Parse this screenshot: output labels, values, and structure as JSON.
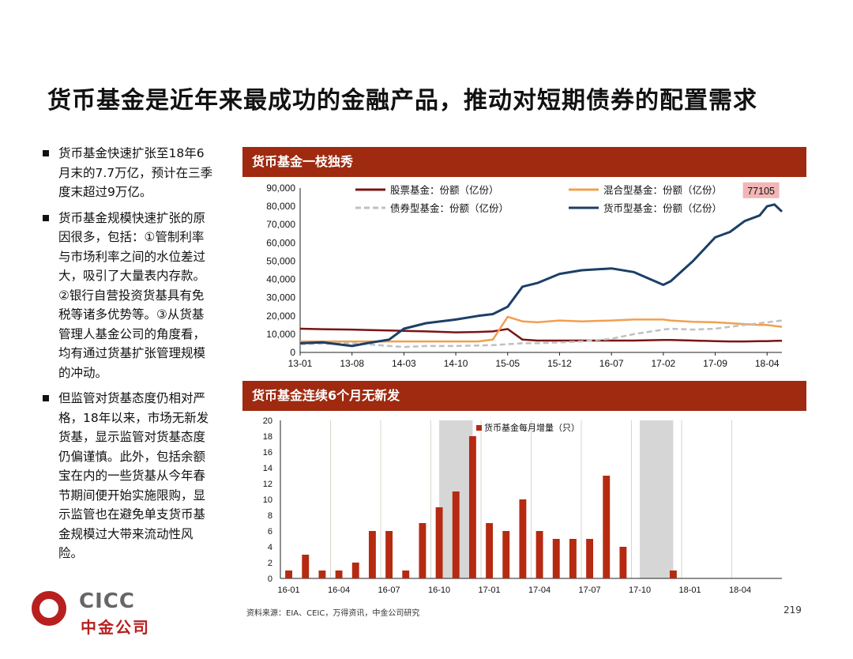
{
  "slide": {
    "title": "货币基金是近年来最成功的金融产品，推动对短期债券的配置需求",
    "source": "资料来源：EIA、CEIC，万得资讯，中金公司研究",
    "page_number": "219",
    "logo_text": "CICC",
    "logo_cn": "中金公司"
  },
  "bullets": [
    "货币基金快速扩张至18年6月末的7.7万亿，预计在三季度末超过9万亿。",
    "货币基金规模快速扩张的原因很多，包括：①管制利率与市场利率之间的水位差过大，吸引了大量表内存款。②银行自营投资货基具有免税等诸多优势等。③从货基管理人基金公司的角度看，均有通过货基扩张管理规模的冲动。",
    "但监管对货基态度仍相对严格，18年以来，市场无新发货基，显示监管对货基态度仍偏谨慎。此外，包括余额宝在内的一些货基从今年春节期间便开始实施限购，显示监管也在避免单支货币基金规模过大带来流动性风险。"
  ],
  "colors": {
    "header_bg": "#9f2a10",
    "stock": "#7b1414",
    "mixed": "#f0a050",
    "bond": "#c0c0c0",
    "money": "#1c3f66",
    "bar": "#b52a10",
    "shade": "#d6d6d6",
    "callout_bg": "#f2b6b6"
  },
  "chart_data": [
    {
      "type": "line",
      "title": "货币基金一枝独秀",
      "ylim": [
        0,
        90000
      ],
      "yticks": [
        "90,000",
        "80,000",
        "70,000",
        "60,000",
        "50,000",
        "40,000",
        "30,000",
        "20,000",
        "10,000",
        "0"
      ],
      "xticks": [
        "13-01",
        "13-08",
        "14-03",
        "14-10",
        "15-05",
        "15-12",
        "16-07",
        "17-02",
        "17-09",
        "18-04"
      ],
      "x": [
        "13-01",
        "13-04",
        "13-08",
        "13-10",
        "14-01",
        "14-03",
        "14-06",
        "14-10",
        "15-01",
        "15-03",
        "15-05",
        "15-07",
        "15-09",
        "15-12",
        "16-03",
        "16-07",
        "16-10",
        "17-02",
        "17-03",
        "17-06",
        "17-09",
        "17-11",
        "18-01",
        "18-03",
        "18-04",
        "18-05",
        "18-06"
      ],
      "series": [
        {
          "name": "股票基金：份额（亿份）",
          "key": "stock",
          "values": [
            13000,
            12700,
            12500,
            12300,
            12000,
            11800,
            11500,
            11000,
            11200,
            11500,
            12800,
            7000,
            6500,
            6500,
            6500,
            6500,
            6500,
            6800,
            6800,
            6500,
            6200,
            6000,
            6000,
            6200,
            6200,
            6300,
            6400
          ]
        },
        {
          "name": "混合型基金：份额（亿份）",
          "key": "mixed",
          "values": [
            6000,
            6000,
            6000,
            6000,
            6000,
            6000,
            6000,
            6000,
            6000,
            7000,
            19500,
            17000,
            16500,
            17500,
            17000,
            17500,
            18000,
            18000,
            17500,
            16800,
            16500,
            16000,
            15500,
            15000,
            15000,
            14500,
            14000
          ]
        },
        {
          "name": "债券型基金：份额（亿份）",
          "key": "bond",
          "values": [
            4500,
            4800,
            5000,
            4500,
            3500,
            3000,
            3500,
            3500,
            3800,
            4000,
            4500,
            5000,
            5000,
            5500,
            6000,
            7500,
            10000,
            12500,
            13000,
            12500,
            13000,
            14000,
            15000,
            16000,
            16500,
            17000,
            17500
          ]
        },
        {
          "name": "货币型基金：份额（亿份）",
          "key": "money",
          "values": [
            5000,
            5500,
            3500,
            5000,
            7000,
            13000,
            16000,
            18000,
            20000,
            21000,
            25000,
            36000,
            38000,
            43000,
            45000,
            46000,
            44000,
            37000,
            39000,
            50000,
            63000,
            66000,
            72000,
            75000,
            80000,
            81000,
            77105
          ]
        }
      ],
      "annotation": "77105"
    },
    {
      "type": "bar",
      "title": "货币基金连续6个月无新发",
      "ylim": [
        0,
        20
      ],
      "yticks": [
        "20",
        "18",
        "16",
        "14",
        "12",
        "10",
        "8",
        "6",
        "4",
        "2",
        "0"
      ],
      "xticks": [
        "16-01",
        "16-04",
        "16-07",
        "16-10",
        "17-01",
        "17-04",
        "17-07",
        "17-10",
        "18-01",
        "18-04"
      ],
      "categories": [
        "16-01",
        "16-02",
        "16-03",
        "16-04",
        "16-05",
        "16-06",
        "16-07",
        "16-08",
        "16-09",
        "16-10",
        "16-11",
        "16-12",
        "17-01",
        "17-02",
        "17-03",
        "17-04",
        "17-05",
        "17-06",
        "17-07",
        "17-08",
        "17-09",
        "17-10",
        "17-11",
        "17-12",
        "18-01",
        "18-02",
        "18-03",
        "18-04",
        "18-05",
        "18-06"
      ],
      "series": [
        {
          "name": "货币基金每月增量（只）",
          "values": [
            1,
            3,
            1,
            1,
            2,
            6,
            6,
            1,
            7,
            9,
            11,
            18,
            7,
            6,
            10,
            6,
            5,
            5,
            5,
            13,
            4,
            0,
            0,
            1,
            0,
            0,
            0,
            0,
            0,
            0
          ]
        }
      ],
      "shaded_ranges": [
        [
          "16-10",
          "16-12"
        ],
        [
          "17-10",
          "17-12"
        ]
      ]
    }
  ]
}
